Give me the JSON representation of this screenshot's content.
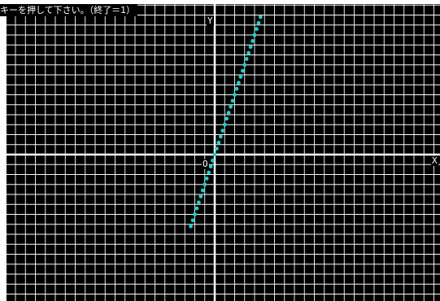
{
  "window": {
    "prompt": "キーを押して下さい。（終了＝1）"
  },
  "axes": {
    "x_label": "X",
    "y_label": "Y",
    "origin_label": "O"
  },
  "colors": {
    "background": "#000000",
    "grid": "#ffffff",
    "axis": "#ffffff",
    "curve": "#1ecfd0"
  },
  "chart_data": {
    "type": "scatter",
    "grid": true,
    "series": [
      {
        "function": "y = 3x",
        "x": [
          -1.2,
          -1.1,
          -1.0,
          -0.9,
          -0.8,
          -0.7,
          -0.6,
          -0.5,
          -0.4,
          -0.3,
          -0.2,
          -0.1,
          0.0,
          0.1,
          0.2,
          0.3,
          0.4,
          0.5,
          0.6,
          0.7,
          0.8,
          0.9,
          1.0,
          1.1,
          1.2,
          1.3,
          1.4,
          1.5,
          1.6,
          1.7,
          1.8,
          1.9,
          2.0,
          2.1,
          2.2,
          2.3
        ],
        "y": [
          -3.6,
          -3.3,
          -3.0,
          -2.7,
          -2.4,
          -2.1,
          -1.8,
          -1.5,
          -1.2,
          -0.9,
          -0.6,
          -0.3,
          0.0,
          0.3,
          0.6,
          0.9,
          1.2,
          1.5,
          1.8,
          2.1,
          2.4,
          2.7,
          3.0,
          3.3,
          3.6,
          3.9,
          4.2,
          4.5,
          4.8,
          5.1,
          5.4,
          5.7,
          6.0,
          6.3,
          6.6,
          6.9
        ]
      }
    ],
    "xlim": [
      -10.5,
      11.2
    ],
    "ylim": [
      -7.2,
      7.7
    ]
  }
}
